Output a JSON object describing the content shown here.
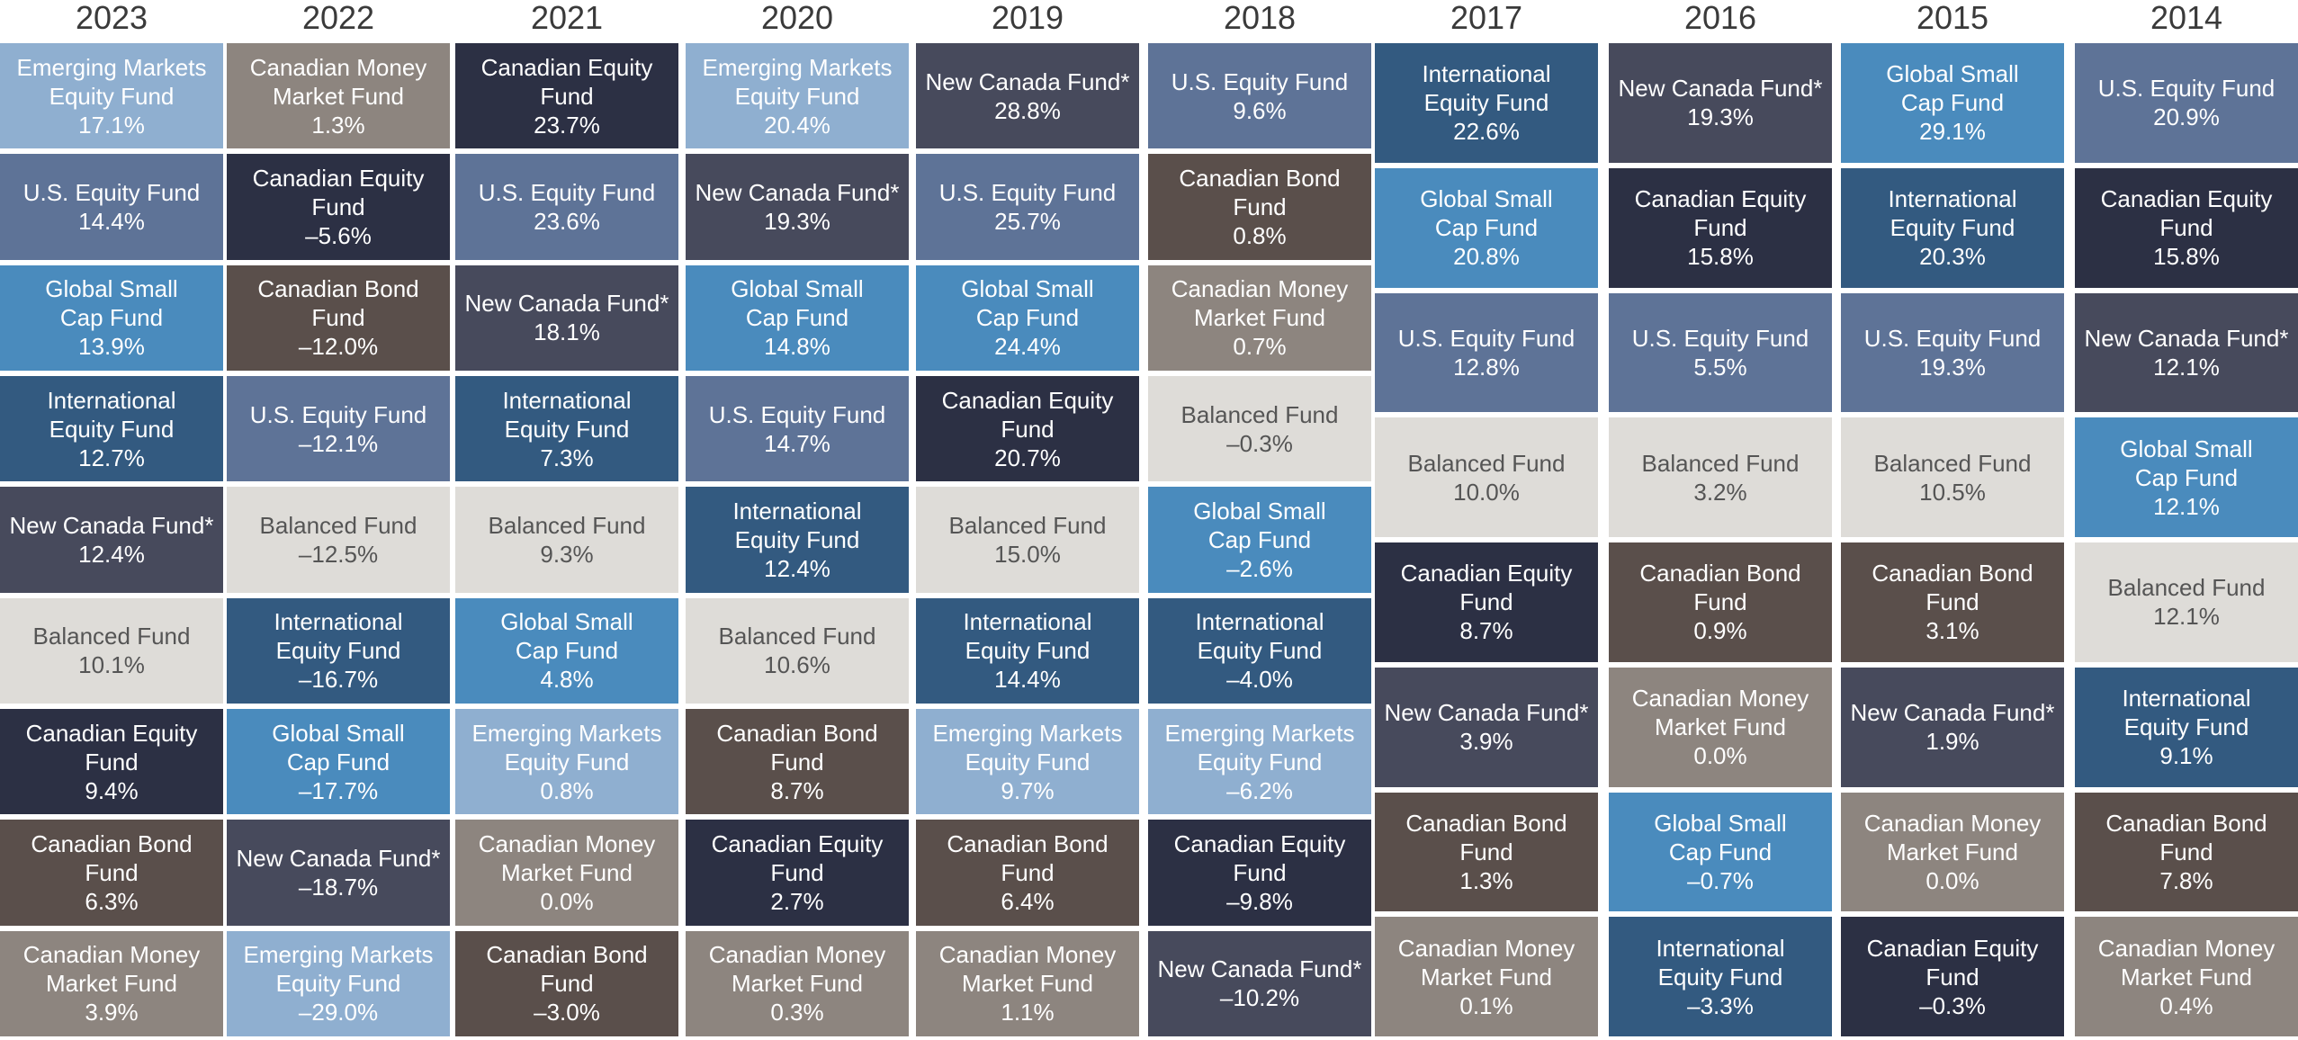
{
  "fund_colors": {
    "Emerging Markets Equity Fund": "#8fafd0",
    "U.S. Equity Fund": "#5e7397",
    "Global Small Cap Fund": "#4a8bbd",
    "International Equity Fund": "#335a80",
    "New Canada Fund*": "#474a5c",
    "Balanced Fund": "#dedcd8",
    "Canadian Equity Fund": "#2c3044",
    "Canadian Bond Fund": "#5a4f4b",
    "Canadian Money Market Fund": "#8d857f"
  },
  "fund_display": {
    "Emerging Markets Equity Fund": "Emerging Markets\nEquity Fund",
    "U.S. Equity Fund": "U.S. Equity Fund",
    "Global Small Cap Fund": "Global Small\nCap Fund",
    "International Equity Fund": "International\nEquity Fund",
    "New Canada Fund*": "New Canada Fund*",
    "Balanced Fund": "Balanced Fund",
    "Canadian Equity Fund": "Canadian Equity\nFund",
    "Canadian Bond Fund": "Canadian Bond\nFund",
    "Canadian Money Market Fund": "Canadian Money\nMarket Fund"
  },
  "chart_data": {
    "type": "table",
    "title": "",
    "years": [
      "2023",
      "2022",
      "2021",
      "2020",
      "2019",
      "2018",
      "2017",
      "2016",
      "2015",
      "2014"
    ],
    "columns": [
      {
        "year": "2023",
        "rows": [
          {
            "fund": "Emerging Markets Equity Fund",
            "return": 17.1
          },
          {
            "fund": "U.S. Equity Fund",
            "return": 14.4
          },
          {
            "fund": "Global Small Cap Fund",
            "return": 13.9
          },
          {
            "fund": "International Equity Fund",
            "return": 12.7
          },
          {
            "fund": "New Canada Fund*",
            "return": 12.4
          },
          {
            "fund": "Balanced Fund",
            "return": 10.1
          },
          {
            "fund": "Canadian Equity Fund",
            "return": 9.4
          },
          {
            "fund": "Canadian Bond Fund",
            "return": 6.3
          },
          {
            "fund": "Canadian Money Market Fund",
            "return": 3.9
          }
        ]
      },
      {
        "year": "2022",
        "rows": [
          {
            "fund": "Canadian Money Market Fund",
            "return": 1.3
          },
          {
            "fund": "Canadian Equity Fund",
            "return": -5.6
          },
          {
            "fund": "Canadian Bond Fund",
            "return": -12.0
          },
          {
            "fund": "U.S. Equity Fund",
            "return": -12.1
          },
          {
            "fund": "Balanced Fund",
            "return": -12.5
          },
          {
            "fund": "International Equity Fund",
            "return": -16.7
          },
          {
            "fund": "Global Small Cap Fund",
            "return": -17.7
          },
          {
            "fund": "New Canada Fund*",
            "return": -18.7
          },
          {
            "fund": "Emerging Markets Equity Fund",
            "return": -29.0
          }
        ]
      },
      {
        "year": "2021",
        "rows": [
          {
            "fund": "Canadian Equity Fund",
            "return": 23.7
          },
          {
            "fund": "U.S. Equity Fund",
            "return": 23.6
          },
          {
            "fund": "New Canada Fund*",
            "return": 18.1
          },
          {
            "fund": "International Equity Fund",
            "return": 7.3
          },
          {
            "fund": "Balanced Fund",
            "return": 9.3
          },
          {
            "fund": "Global Small Cap Fund",
            "return": 4.8
          },
          {
            "fund": "Emerging Markets Equity Fund",
            "return": 0.8
          },
          {
            "fund": "Canadian Money Market Fund",
            "return": 0.0
          },
          {
            "fund": "Canadian Bond Fund",
            "return": -3.0
          }
        ]
      },
      {
        "year": "2020",
        "rows": [
          {
            "fund": "Emerging Markets Equity Fund",
            "return": 20.4
          },
          {
            "fund": "New Canada Fund*",
            "return": 19.3
          },
          {
            "fund": "Global Small Cap Fund",
            "return": 14.8
          },
          {
            "fund": "U.S. Equity Fund",
            "return": 14.7
          },
          {
            "fund": "International Equity Fund",
            "return": 12.4
          },
          {
            "fund": "Balanced Fund",
            "return": 10.6
          },
          {
            "fund": "Canadian Bond Fund",
            "return": 8.7
          },
          {
            "fund": "Canadian Equity Fund",
            "return": 2.7
          },
          {
            "fund": "Canadian Money Market Fund",
            "return": 0.3
          }
        ]
      },
      {
        "year": "2019",
        "rows": [
          {
            "fund": "New Canada Fund*",
            "return": 28.8
          },
          {
            "fund": "U.S. Equity Fund",
            "return": 25.7
          },
          {
            "fund": "Global Small Cap Fund",
            "return": 24.4
          },
          {
            "fund": "Canadian Equity Fund",
            "return": 20.7
          },
          {
            "fund": "Balanced Fund",
            "return": 15.0
          },
          {
            "fund": "International Equity Fund",
            "return": 14.4
          },
          {
            "fund": "Emerging Markets Equity Fund",
            "return": 9.7
          },
          {
            "fund": "Canadian Bond Fund",
            "return": 6.4
          },
          {
            "fund": "Canadian Money Market Fund",
            "return": 1.1
          }
        ]
      },
      {
        "year": "2018",
        "rows": [
          {
            "fund": "U.S. Equity Fund",
            "return": 9.6
          },
          {
            "fund": "Canadian Bond Fund",
            "return": 0.8
          },
          {
            "fund": "Canadian Money Market Fund",
            "return": 0.7
          },
          {
            "fund": "Balanced Fund",
            "return": -0.3
          },
          {
            "fund": "Global Small Cap Fund",
            "return": -2.6
          },
          {
            "fund": "International Equity Fund",
            "return": -4.0
          },
          {
            "fund": "Emerging Markets Equity Fund",
            "return": -6.2
          },
          {
            "fund": "Canadian Equity Fund",
            "return": -9.8
          },
          {
            "fund": "New Canada Fund*",
            "return": -10.2
          }
        ]
      },
      {
        "year": "2017",
        "rows": [
          {
            "fund": "International Equity Fund",
            "return": 22.6
          },
          {
            "fund": "Global Small Cap Fund",
            "return": 20.8
          },
          {
            "fund": "U.S. Equity Fund",
            "return": 12.8
          },
          {
            "fund": "Balanced Fund",
            "return": 10.0
          },
          {
            "fund": "Canadian Equity Fund",
            "return": 8.7
          },
          {
            "fund": "New Canada Fund*",
            "return": 3.9
          },
          {
            "fund": "Canadian Bond Fund",
            "return": 1.3
          },
          {
            "fund": "Canadian Money Market Fund",
            "return": 0.1
          }
        ]
      },
      {
        "year": "2016",
        "rows": [
          {
            "fund": "New Canada Fund*",
            "return": 19.3
          },
          {
            "fund": "Canadian Equity Fund",
            "return": 15.8
          },
          {
            "fund": "U.S. Equity Fund",
            "return": 5.5
          },
          {
            "fund": "Balanced Fund",
            "return": 3.2
          },
          {
            "fund": "Canadian Bond Fund",
            "return": 0.9
          },
          {
            "fund": "Canadian Money Market Fund",
            "return": 0.0
          },
          {
            "fund": "Global Small Cap Fund",
            "return": -0.7
          },
          {
            "fund": "International Equity Fund",
            "return": -3.3
          }
        ]
      },
      {
        "year": "2015",
        "rows": [
          {
            "fund": "Global Small Cap Fund",
            "return": 29.1
          },
          {
            "fund": "International Equity Fund",
            "return": 20.3
          },
          {
            "fund": "U.S. Equity Fund",
            "return": 19.3
          },
          {
            "fund": "Balanced Fund",
            "return": 10.5
          },
          {
            "fund": "Canadian Bond Fund",
            "return": 3.1
          },
          {
            "fund": "New Canada Fund*",
            "return": 1.9
          },
          {
            "fund": "Canadian Money Market Fund",
            "return": 0.0
          },
          {
            "fund": "Canadian Equity Fund",
            "return": -0.3
          }
        ]
      },
      {
        "year": "2014",
        "rows": [
          {
            "fund": "U.S. Equity Fund",
            "return": 20.9
          },
          {
            "fund": "Canadian Equity Fund",
            "return": 15.8
          },
          {
            "fund": "New Canada Fund*",
            "return": 12.1
          },
          {
            "fund": "Global Small Cap Fund",
            "return": 12.1
          },
          {
            "fund": "Balanced Fund",
            "return": 12.1
          },
          {
            "fund": "International Equity Fund",
            "return": 9.1
          },
          {
            "fund": "Canadian Bond Fund",
            "return": 7.8
          },
          {
            "fund": "Canadian Money Market Fund",
            "return": 0.4
          }
        ]
      }
    ]
  }
}
